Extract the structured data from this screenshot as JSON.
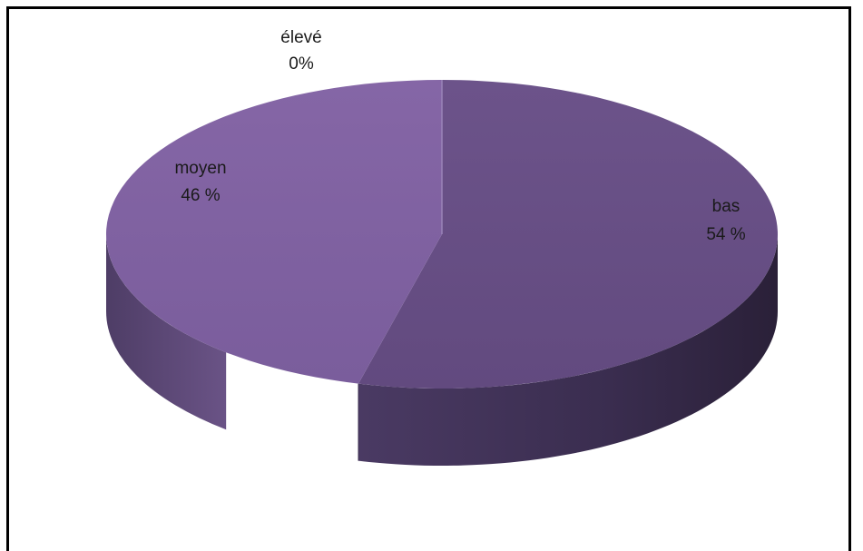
{
  "chart_data": {
    "type": "pie",
    "style": "3d",
    "categories": [
      "bas",
      "moyen",
      "élevé"
    ],
    "values": [
      54,
      46,
      0
    ],
    "value_labels": [
      "54 %",
      "46 %",
      "0%"
    ],
    "colors": {
      "bas": "#6a5188",
      "moyen": "#7f62a0",
      "elevé_edge": "#9a83b8",
      "side_dark": "#2f2440",
      "side_light": "#5b4778"
    },
    "legend": "none"
  }
}
